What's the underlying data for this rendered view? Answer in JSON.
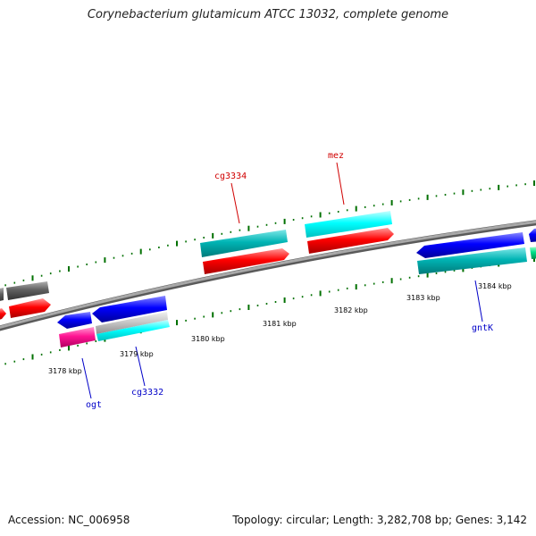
{
  "title": "Corynebacterium glutamicum ATCC 13032, complete genome",
  "footer": {
    "accession": "Accession: NC_006958",
    "summary": "Topology: circular; Length: 3,282,708 bp; Genes: 3,142"
  },
  "colors": {
    "backbone": "#8c8c8c",
    "tick": "#007000",
    "forward_cds": "#00b4b4",
    "forward_cds_light": "#00ffff",
    "reverse_cds": "#ff0000",
    "blue_cds": "#0000ff",
    "gray_cds": "#606060",
    "pink_cds": "#ff1493",
    "label_red": "#d00000",
    "label_blue": "#0000c8"
  },
  "kbp_labels": [
    "3178 kbp",
    "3179 kbp",
    "3180 kbp",
    "3181 kbp",
    "3182 kbp",
    "3183 kbp",
    "3184 kbp"
  ],
  "gene_labels": [
    {
      "text": "cg3334",
      "color": "label_red"
    },
    {
      "text": "mez",
      "color": "label_red"
    },
    {
      "text": "ogt",
      "color": "label_blue"
    },
    {
      "text": "cg3332",
      "color": "label_blue"
    },
    {
      "text": "gntK",
      "color": "label_blue"
    }
  ]
}
